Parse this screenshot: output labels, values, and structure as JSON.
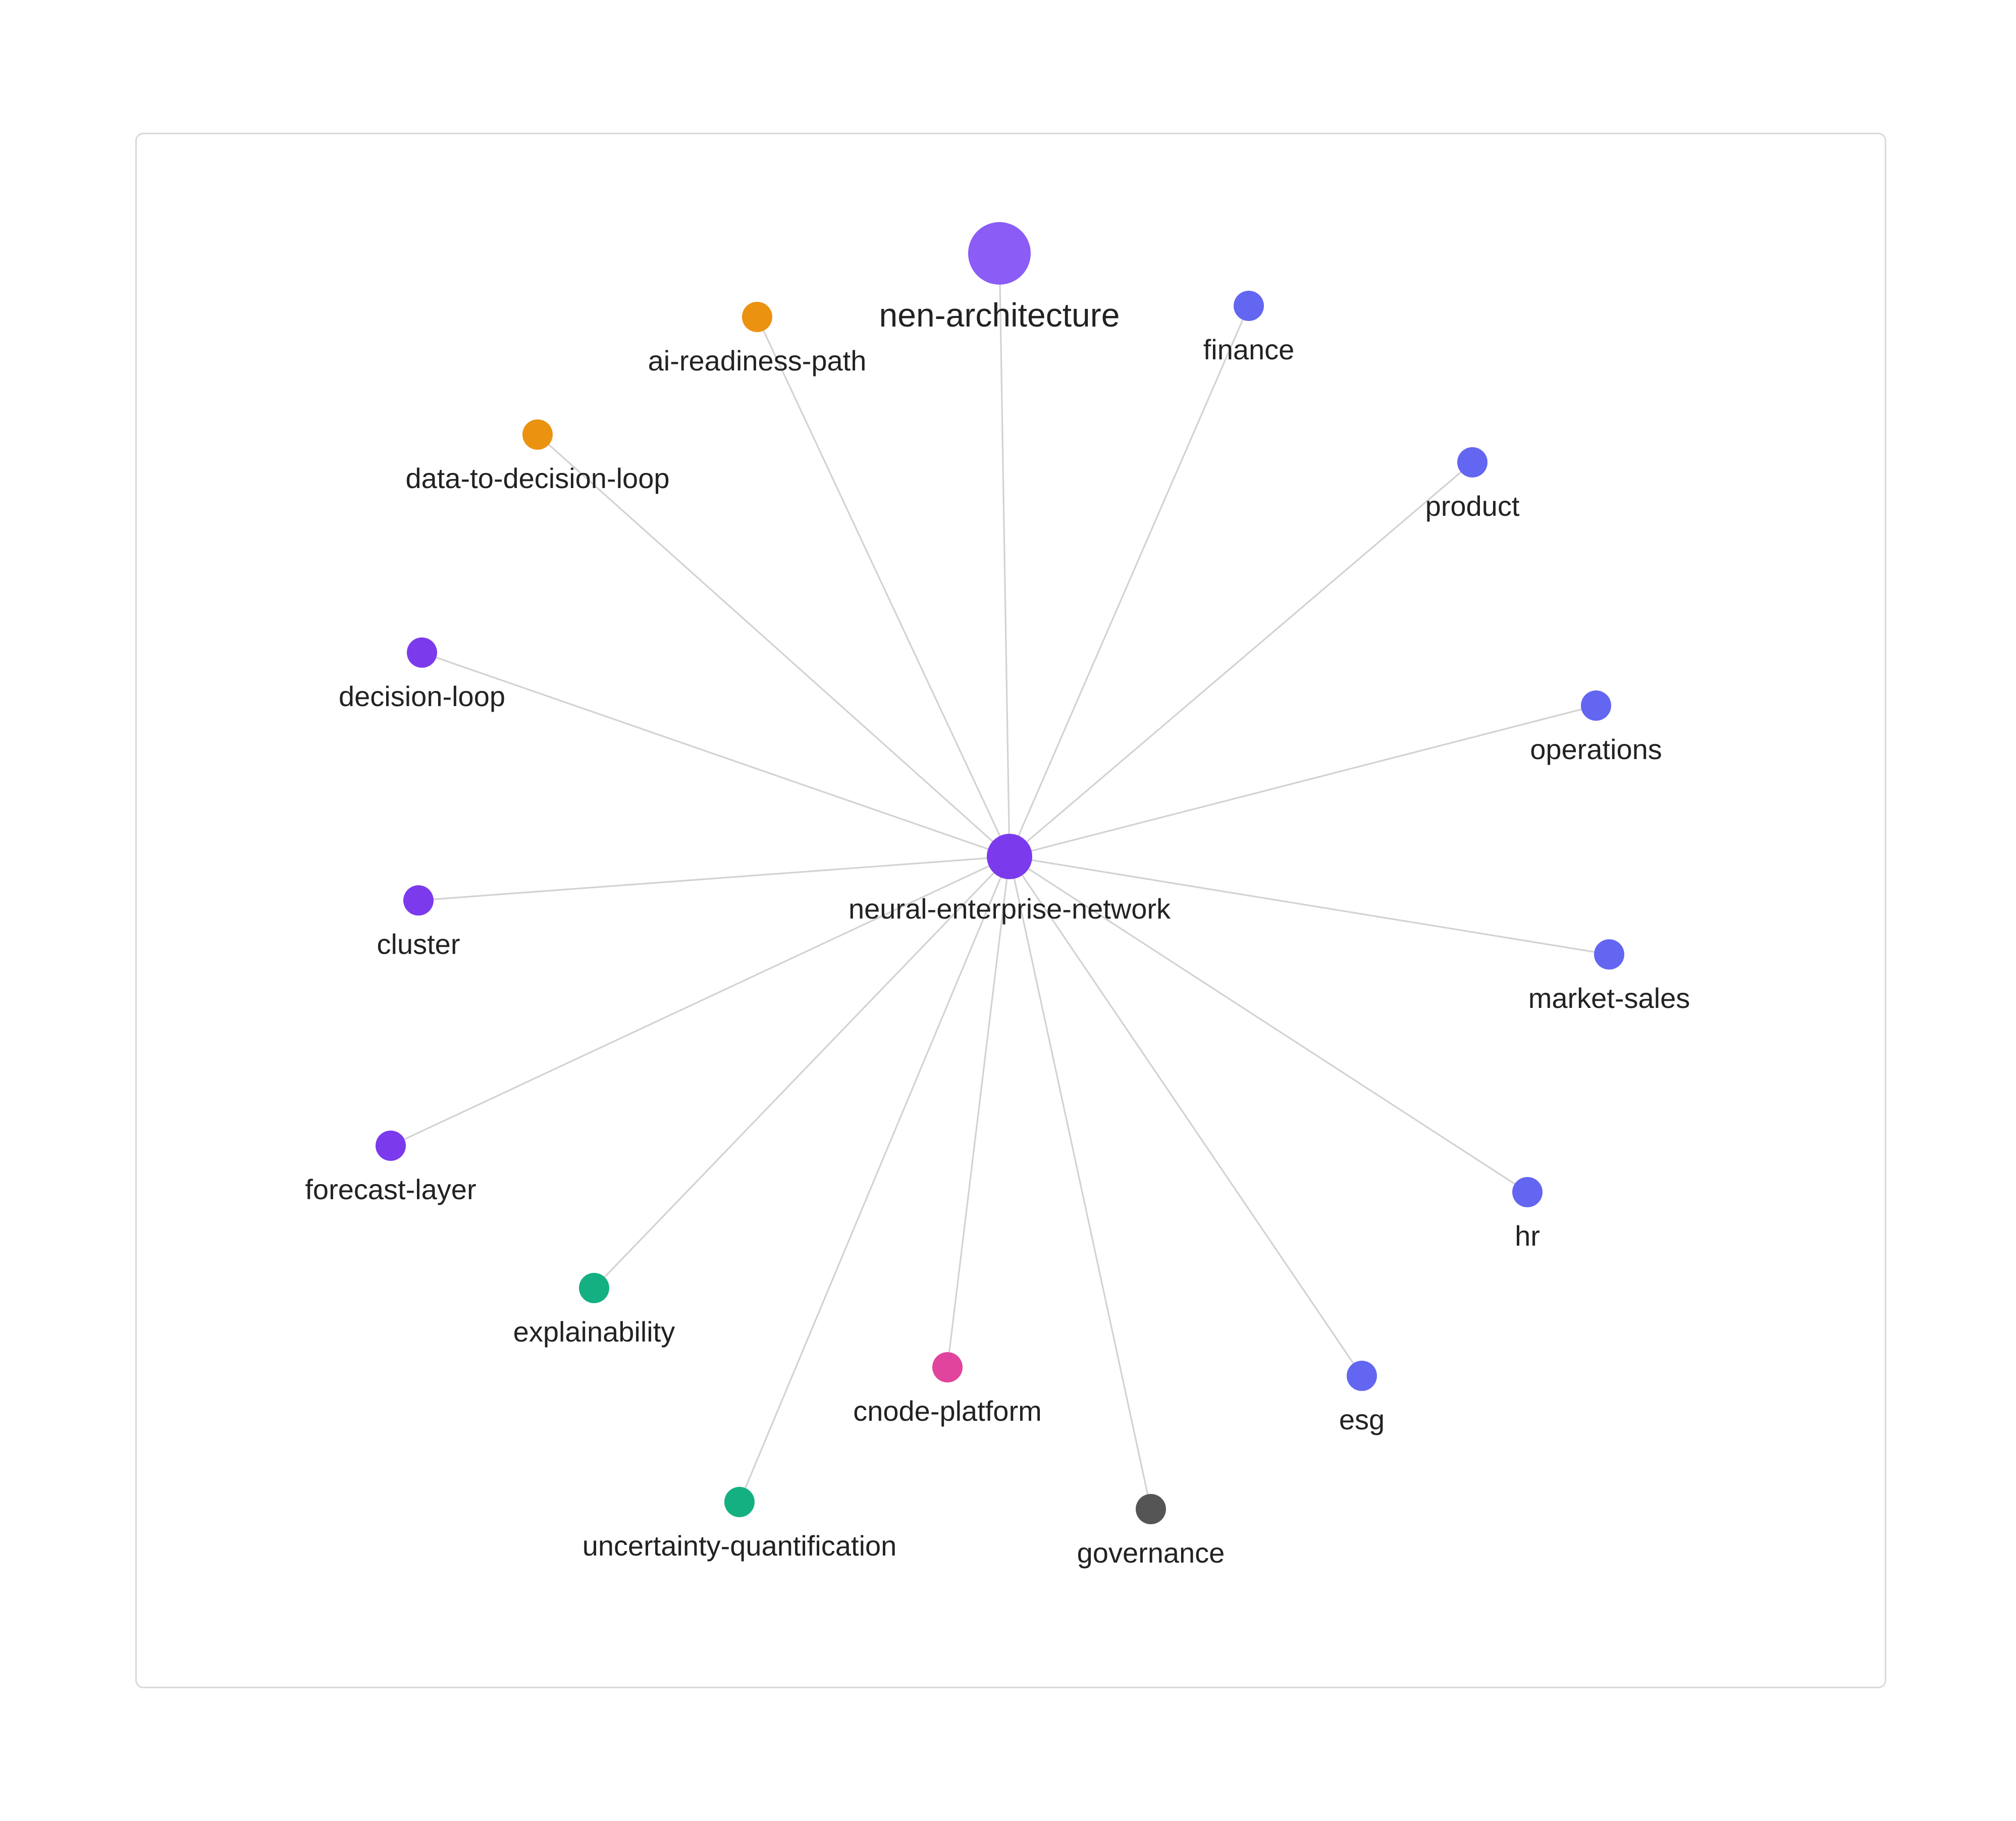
{
  "graph": {
    "colors": {
      "hub": "#7c3aed",
      "root": "#8b5cf6",
      "purple": "#7c3aed",
      "orange": "#eb9211",
      "blue": "#6366f1",
      "green": "#14b082",
      "pink": "#e0449c",
      "gray": "#555555",
      "edge": "#d2d2d2"
    },
    "nodes": [
      {
        "id": "nen-architecture",
        "label": "nen-architecture",
        "color": "#8b5cf6",
        "type": "root"
      },
      {
        "id": "neural-enterprise-network",
        "label": "neural-enterprise-network",
        "color": "#7c3aed",
        "type": "hub"
      },
      {
        "id": "ai-readiness-path",
        "label": "ai-readiness-path",
        "color": "#eb9211",
        "type": "leaf"
      },
      {
        "id": "finance",
        "label": "finance",
        "color": "#6366f1",
        "type": "leaf"
      },
      {
        "id": "data-to-decision-loop",
        "label": "data-to-decision-loop",
        "color": "#eb9211",
        "type": "leaf"
      },
      {
        "id": "product",
        "label": "product",
        "color": "#6366f1",
        "type": "leaf"
      },
      {
        "id": "decision-loop",
        "label": "decision-loop",
        "color": "#7c3aed",
        "type": "leaf"
      },
      {
        "id": "operations",
        "label": "operations",
        "color": "#6366f1",
        "type": "leaf"
      },
      {
        "id": "cluster",
        "label": "cluster",
        "color": "#7c3aed",
        "type": "leaf"
      },
      {
        "id": "market-sales",
        "label": "market-sales",
        "color": "#6366f1",
        "type": "leaf"
      },
      {
        "id": "forecast-layer",
        "label": "forecast-layer",
        "color": "#7c3aed",
        "type": "leaf"
      },
      {
        "id": "hr",
        "label": "hr",
        "color": "#6366f1",
        "type": "leaf"
      },
      {
        "id": "explainability",
        "label": "explainability",
        "color": "#14b082",
        "type": "leaf"
      },
      {
        "id": "esg",
        "label": "esg",
        "color": "#6366f1",
        "type": "leaf"
      },
      {
        "id": "cnode-platform",
        "label": "cnode-platform",
        "color": "#e0449c",
        "type": "leaf"
      },
      {
        "id": "uncertainty-quantification",
        "label": "uncertainty-quantification",
        "color": "#14b082",
        "type": "leaf"
      },
      {
        "id": "governance",
        "label": "governance",
        "color": "#555555",
        "type": "leaf"
      }
    ],
    "edges": [
      {
        "source": "neural-enterprise-network",
        "target": "nen-architecture"
      },
      {
        "source": "neural-enterprise-network",
        "target": "ai-readiness-path"
      },
      {
        "source": "neural-enterprise-network",
        "target": "finance"
      },
      {
        "source": "neural-enterprise-network",
        "target": "data-to-decision-loop"
      },
      {
        "source": "neural-enterprise-network",
        "target": "product"
      },
      {
        "source": "neural-enterprise-network",
        "target": "decision-loop"
      },
      {
        "source": "neural-enterprise-network",
        "target": "operations"
      },
      {
        "source": "neural-enterprise-network",
        "target": "cluster"
      },
      {
        "source": "neural-enterprise-network",
        "target": "market-sales"
      },
      {
        "source": "neural-enterprise-network",
        "target": "forecast-layer"
      },
      {
        "source": "neural-enterprise-network",
        "target": "hr"
      },
      {
        "source": "neural-enterprise-network",
        "target": "explainability"
      },
      {
        "source": "neural-enterprise-network",
        "target": "esg"
      },
      {
        "source": "neural-enterprise-network",
        "target": "cnode-platform"
      },
      {
        "source": "neural-enterprise-network",
        "target": "uncertainty-quantification"
      },
      {
        "source": "neural-enterprise-network",
        "target": "governance"
      }
    ]
  }
}
